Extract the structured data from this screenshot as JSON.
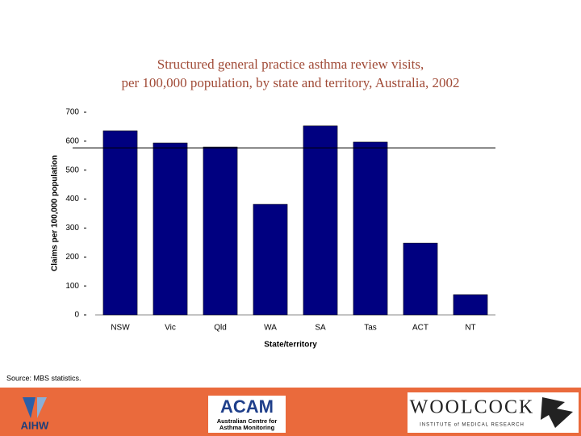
{
  "chart_data": {
    "type": "bar",
    "title": [
      "Structured general practice asthma review visits,",
      "per 100,000 population, by state and territory, Australia, 2002"
    ],
    "x_label": "State/territory",
    "y_label": "Claims per 100,000 population",
    "categories": [
      "NSW",
      "Vic",
      "Qld",
      "WA",
      "SA",
      "Tas",
      "ACT",
      "NT"
    ],
    "values": [
      636,
      594,
      580,
      382,
      653,
      597,
      248,
      70
    ],
    "color": "#000080",
    "reference_line": 577,
    "ylim": [
      0,
      700
    ],
    "yticks": [
      0,
      100,
      200,
      300,
      400,
      500,
      600,
      700
    ],
    "grid": false,
    "source": "Source: MBS statistics."
  },
  "footer": {
    "logos": [
      "AIHW",
      "ACAM",
      "Australian Centre for",
      "Asthma Monitoring",
      "WOOLCOCK",
      "INSTITUTE of MEDICAL RESEARCH"
    ]
  }
}
